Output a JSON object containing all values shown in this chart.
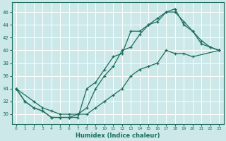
{
  "xlabel": "Humidex (Indice chaleur)",
  "bg_color": "#cce8e8",
  "grid_color": "#b0d0d0",
  "line_color": "#1a6e5a",
  "marker": "+",
  "xlim": [
    -0.5,
    23.5
  ],
  "ylim": [
    28.5,
    47.5
  ],
  "xticks": [
    0,
    1,
    2,
    3,
    4,
    5,
    6,
    7,
    8,
    9,
    10,
    11,
    12,
    13,
    14,
    15,
    16,
    17,
    18,
    19,
    20,
    21,
    22,
    23
  ],
  "yticks": [
    30,
    32,
    34,
    36,
    38,
    40,
    42,
    44,
    46
  ],
  "line1_x": [
    0,
    1,
    2,
    3,
    4,
    5,
    6,
    7,
    8,
    9,
    10,
    11,
    12,
    13,
    14,
    15,
    16,
    17,
    18,
    19,
    20,
    21,
    22,
    23
  ],
  "line1_y": [
    34,
    32,
    31,
    30.5,
    29.5,
    29.5,
    29.5,
    29.5,
    34,
    35,
    37,
    39,
    39.5,
    43,
    43,
    44,
    45,
    46,
    46.5,
    44,
    43,
    41.5,
    40.5,
    40
  ],
  "line2_x": [
    0,
    1,
    2,
    3,
    4,
    5,
    6,
    7,
    8,
    9,
    10,
    11,
    12,
    13,
    14,
    15,
    16,
    17,
    18,
    19,
    20,
    21,
    22,
    23
  ],
  "line2_y": [
    34,
    32,
    31,
    30.5,
    29.5,
    29.5,
    29.5,
    30,
    31,
    34,
    36,
    37.5,
    40,
    40.5,
    42.5,
    44,
    44.5,
    46,
    46,
    44.5,
    43,
    41,
    40.5,
    40
  ],
  "line3_x": [
    0,
    2,
    3,
    4,
    5,
    6,
    7,
    8,
    9,
    10,
    11,
    12,
    13,
    14,
    15,
    16,
    17,
    18,
    19,
    20,
    23
  ],
  "line3_y": [
    34,
    32,
    31,
    30.5,
    30,
    30,
    30,
    30,
    31,
    32,
    33,
    34,
    36,
    37,
    37.5,
    38,
    40,
    39.5,
    39.5,
    39,
    40
  ]
}
